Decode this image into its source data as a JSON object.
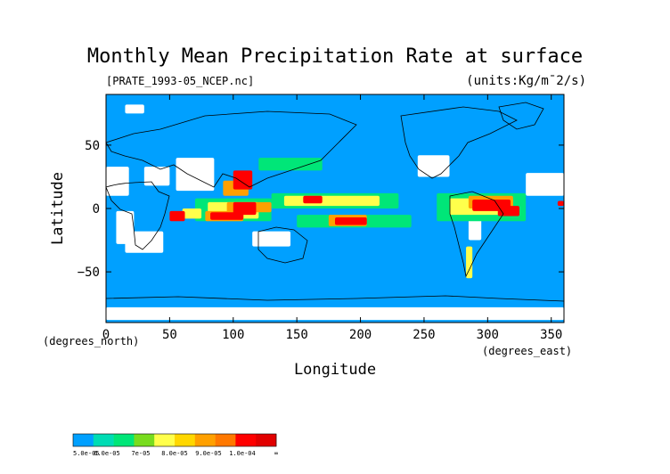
{
  "chart_data": {
    "type": "heatmap",
    "title": "Monthly Mean Precipitation Rate at surface",
    "source_file": "[PRATE_1993-05_NCEP.nc]",
    "units": "(units:Kg/m¯2/s)",
    "xlabel": "Longitude",
    "ylabel": "Latitude",
    "x_unit_note": "(degrees_east)",
    "y_unit_note": "(degrees_north)",
    "xlim": [
      0,
      360
    ],
    "ylim": [
      -90,
      90
    ],
    "x_ticks": [
      "0",
      "50",
      "100",
      "150",
      "200",
      "250",
      "300",
      "350"
    ],
    "x_tick_values": [
      0,
      50,
      100,
      150,
      200,
      250,
      300,
      350
    ],
    "y_ticks": [
      "50",
      "0",
      "−50"
    ],
    "y_tick_values": [
      50,
      0,
      -50
    ],
    "background_color": "#00a0ff",
    "legend": {
      "colors": [
        "#00a0ff",
        "#00dcb4",
        "#00e678",
        "#78dc1e",
        "#ffff4b",
        "#ffd700",
        "#ffa000",
        "#ff7800",
        "#ff0000",
        "#e10000"
      ],
      "labels": [
        "5.0e-05",
        "6.0e-05",
        "7e-05",
        "8.0e-05",
        "9.0e-05",
        "1.0e-04",
        "∞"
      ],
      "label_positions": [
        0,
        2,
        4,
        6,
        8,
        10,
        12
      ]
    },
    "regions": [
      {
        "level": 0,
        "lon": [
          0,
          18
        ],
        "lat": [
          10,
          33
        ]
      },
      {
        "level": 0,
        "lon": [
          30,
          50
        ],
        "lat": [
          18,
          33
        ]
      },
      {
        "level": 0,
        "lon": [
          55,
          85
        ],
        "lat": [
          14,
          40
        ]
      },
      {
        "level": 0,
        "lon": [
          245,
          270
        ],
        "lat": [
          25,
          42
        ]
      },
      {
        "level": 0,
        "lon": [
          330,
          360
        ],
        "lat": [
          10,
          28
        ]
      },
      {
        "level": 0,
        "lon": [
          8,
          22
        ],
        "lat": [
          -2,
          -28
        ]
      },
      {
        "level": 0,
        "lon": [
          15,
          45
        ],
        "lat": [
          -18,
          -35
        ]
      },
      {
        "level": 0,
        "lon": [
          115,
          145
        ],
        "lat": [
          -18,
          -30
        ]
      },
      {
        "level": 0,
        "lon": [
          285,
          295
        ],
        "lat": [
          -5,
          -25
        ]
      },
      {
        "level": 0,
        "lon": [
          0,
          360
        ],
        "lat": [
          -78,
          -88
        ]
      },
      {
        "level": 0,
        "lon": [
          15,
          30
        ],
        "lat": [
          75,
          82
        ]
      },
      {
        "level": 1,
        "lon": [
          70,
          130
        ],
        "lat": [
          8,
          -10
        ]
      },
      {
        "level": 1,
        "lon": [
          130,
          230
        ],
        "lat": [
          12,
          0
        ]
      },
      {
        "level": 1,
        "lon": [
          150,
          240
        ],
        "lat": [
          -5,
          -15
        ]
      },
      {
        "level": 1,
        "lon": [
          260,
          330
        ],
        "lat": [
          12,
          -10
        ]
      },
      {
        "level": 1,
        "lon": [
          120,
          170
        ],
        "lat": [
          40,
          30
        ]
      },
      {
        "level": 2,
        "lon": [
          80,
          120
        ],
        "lat": [
          5,
          -8
        ]
      },
      {
        "level": 2,
        "lon": [
          140,
          215
        ],
        "lat": [
          10,
          2
        ]
      },
      {
        "level": 2,
        "lon": [
          270,
          320
        ],
        "lat": [
          8,
          -5
        ]
      },
      {
        "level": 2,
        "lon": [
          60,
          75
        ],
        "lat": [
          0,
          -8
        ]
      },
      {
        "level": 2,
        "lon": [
          283,
          288
        ],
        "lat": [
          -30,
          -55
        ]
      },
      {
        "level": 3,
        "lon": [
          78,
          108
        ],
        "lat": [
          -2,
          -10
        ]
      },
      {
        "level": 3,
        "lon": [
          92,
          112
        ],
        "lat": [
          22,
          10
        ]
      },
      {
        "level": 3,
        "lon": [
          175,
          205
        ],
        "lat": [
          -5,
          -14
        ]
      },
      {
        "level": 3,
        "lon": [
          285,
          320
        ],
        "lat": [
          10,
          0
        ]
      },
      {
        "level": 3,
        "lon": [
          95,
          130
        ],
        "lat": [
          5,
          -3
        ]
      },
      {
        "level": 4,
        "lon": [
          82,
          108
        ],
        "lat": [
          -3,
          -9
        ]
      },
      {
        "level": 4,
        "lon": [
          100,
          115
        ],
        "lat": [
          30,
          15
        ]
      },
      {
        "level": 4,
        "lon": [
          100,
          118
        ],
        "lat": [
          5,
          -5
        ]
      },
      {
        "level": 4,
        "lon": [
          180,
          205
        ],
        "lat": [
          -7,
          -13
        ]
      },
      {
        "level": 4,
        "lon": [
          288,
          318
        ],
        "lat": [
          7,
          -2
        ]
      },
      {
        "level": 4,
        "lon": [
          308,
          325
        ],
        "lat": [
          2,
          -6
        ]
      },
      {
        "level": 4,
        "lon": [
          50,
          62
        ],
        "lat": [
          -2,
          -10
        ]
      },
      {
        "level": 4,
        "lon": [
          355,
          360
        ],
        "lat": [
          6,
          2
        ]
      },
      {
        "level": 4,
        "lon": [
          155,
          170
        ],
        "lat": [
          10,
          4
        ]
      }
    ]
  }
}
